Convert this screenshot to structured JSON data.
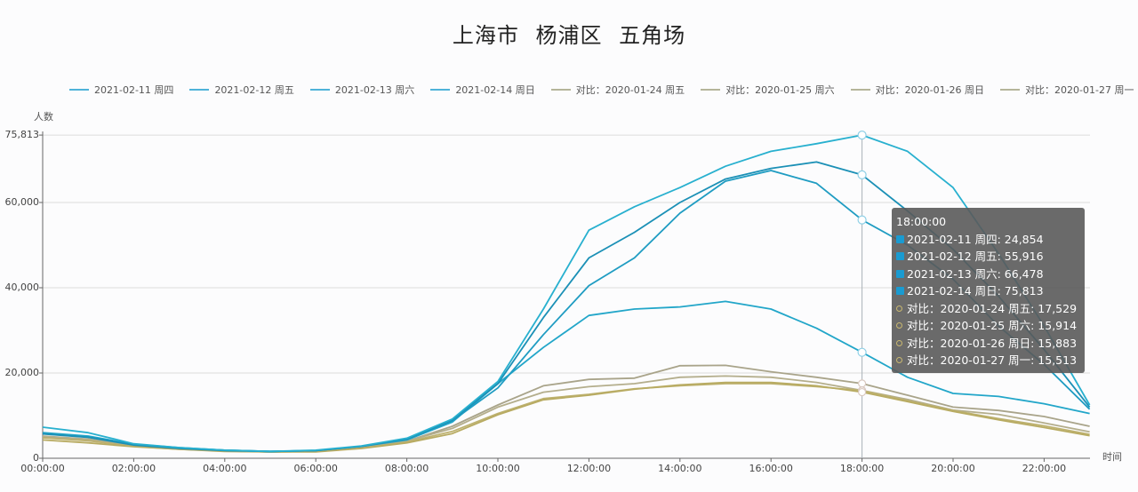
{
  "title": "上海市  杨浦区  五角场",
  "axes": {
    "y_label": "人数",
    "x_label": "时间",
    "y_ticks": [
      "0",
      "20,000",
      "40,000",
      "60,000",
      "75,813"
    ],
    "x_ticks": [
      "00:00:00",
      "02:00:00",
      "04:00:00",
      "06:00:00",
      "08:00:00",
      "10:00:00",
      "12:00:00",
      "14:00:00",
      "16:00:00",
      "18:00:00",
      "20:00:00",
      "22:00:00"
    ]
  },
  "legend": [
    {
      "label": "2021-02-11 周四",
      "color": "#4fb3d9"
    },
    {
      "label": "2021-02-12 周五",
      "color": "#4fb3d9"
    },
    {
      "label": "2021-02-13 周六",
      "color": "#4fb3d9"
    },
    {
      "label": "2021-02-14 周日",
      "color": "#4fb3d9"
    },
    {
      "label": "对比：2020-01-24 周五",
      "color": "#b5b59a"
    },
    {
      "label": "对比：2020-01-25 周六",
      "color": "#b5b59a"
    },
    {
      "label": "对比：2020-01-26 周日",
      "color": "#b5b59a"
    },
    {
      "label": "对比：2020-01-27 周一",
      "color": "#b5b59a"
    }
  ],
  "tooltip": {
    "header": "18:00:00",
    "rows": [
      {
        "label": "2021-02-11 周四: 24,854",
        "marker": "square",
        "color": "#1a9bd1"
      },
      {
        "label": "2021-02-12 周五: 55,916",
        "marker": "square",
        "color": "#1a9bd1"
      },
      {
        "label": "2021-02-13 周六: 66,478",
        "marker": "square",
        "color": "#1a9bd1"
      },
      {
        "label": "2021-02-14 周日: 75,813",
        "marker": "square",
        "color": "#1a9bd1"
      },
      {
        "label": "对比：2020-01-24 周五: 17,529",
        "marker": "circle",
        "color": "#c9b870"
      },
      {
        "label": "对比：2020-01-25 周六: 15,914",
        "marker": "circle",
        "color": "#c9b870"
      },
      {
        "label": "对比：2020-01-26 周日: 15,883",
        "marker": "circle",
        "color": "#c9b870"
      },
      {
        "label": "对比：2020-01-27 周一: 15,513",
        "marker": "circle",
        "color": "#c9b870"
      }
    ]
  },
  "chart_data": {
    "type": "line",
    "title": "上海市  杨浦区  五角场",
    "xlabel": "时间",
    "ylabel": "人数",
    "ylim": [
      0,
      75813
    ],
    "grid": true,
    "legend_position": "top",
    "x": [
      "00:00",
      "01:00",
      "02:00",
      "03:00",
      "04:00",
      "05:00",
      "06:00",
      "07:00",
      "08:00",
      "09:00",
      "10:00",
      "11:00",
      "12:00",
      "13:00",
      "14:00",
      "15:00",
      "16:00",
      "17:00",
      "18:00",
      "19:00",
      "20:00",
      "21:00",
      "22:00",
      "23:00"
    ],
    "series": [
      {
        "name": "2021-02-11 周四",
        "color": "#22a6c9",
        "values": [
          6000,
          5200,
          3300,
          2500,
          1900,
          1600,
          1800,
          2800,
          4300,
          8500,
          17500,
          26000,
          33500,
          35000,
          35500,
          36800,
          35000,
          30500,
          24854,
          19000,
          15200,
          14500,
          12800,
          10500
        ]
      },
      {
        "name": "2021-02-12 周五",
        "color": "#1f9cc2",
        "values": [
          5800,
          5000,
          3200,
          2400,
          1900,
          1600,
          1800,
          2800,
          4500,
          8800,
          16500,
          29000,
          40500,
          47000,
          57500,
          65000,
          67500,
          64500,
          55916,
          50000,
          42000,
          31000,
          22000,
          11500
        ]
      },
      {
        "name": "2021-02-13 周六",
        "color": "#1b90b6",
        "values": [
          5700,
          4900,
          3100,
          2300,
          1800,
          1600,
          1800,
          2800,
          4500,
          9000,
          17500,
          33000,
          47000,
          53000,
          60000,
          65500,
          68000,
          69500,
          66478,
          58000,
          49000,
          38000,
          25500,
          12000
        ]
      },
      {
        "name": "2021-02-14 周日",
        "color": "#28b0cf",
        "values": [
          7300,
          6000,
          3400,
          2500,
          1900,
          1600,
          1900,
          2900,
          4700,
          9200,
          18000,
          35000,
          53500,
          59000,
          63500,
          68500,
          72000,
          73800,
          75813,
          72000,
          63500,
          48000,
          31000,
          12500
        ]
      },
      {
        "name": "对比：2020-01-24 周五",
        "color": "#a9a48a",
        "values": [
          5000,
          4300,
          2900,
          2200,
          1700,
          1500,
          1600,
          2500,
          4000,
          7500,
          12500,
          17000,
          18500,
          18800,
          21700,
          21800,
          20300,
          19000,
          17529,
          14800,
          12000,
          11200,
          9800,
          7500
        ]
      },
      {
        "name": "对比：2020-01-25 周六",
        "color": "#b4ae8c",
        "values": [
          5200,
          4500,
          3000,
          2200,
          1700,
          1500,
          1600,
          2500,
          4000,
          7000,
          12000,
          15500,
          16800,
          17500,
          19000,
          19300,
          19000,
          17800,
          15914,
          13800,
          11300,
          10300,
          8300,
          6200
        ]
      },
      {
        "name": "对比：2020-01-26 周日",
        "color": "#bdb16f",
        "values": [
          4800,
          4100,
          2800,
          2100,
          1700,
          1500,
          1600,
          2400,
          3800,
          6300,
          10500,
          14000,
          15000,
          16300,
          17000,
          17500,
          17500,
          16800,
          15883,
          13500,
          11200,
          9300,
          7600,
          5600
        ]
      },
      {
        "name": "对比：2020-01-27 周一",
        "color": "#b8ab62",
        "values": [
          4300,
          3600,
          2700,
          2100,
          1600,
          1500,
          1500,
          2300,
          3600,
          5800,
          10200,
          13700,
          14800,
          16200,
          17200,
          17800,
          17800,
          17000,
          15513,
          13300,
          11000,
          9000,
          7200,
          5300
        ]
      }
    ],
    "annotations": [
      "crosshair at 18:00:00 with tooltip"
    ]
  }
}
